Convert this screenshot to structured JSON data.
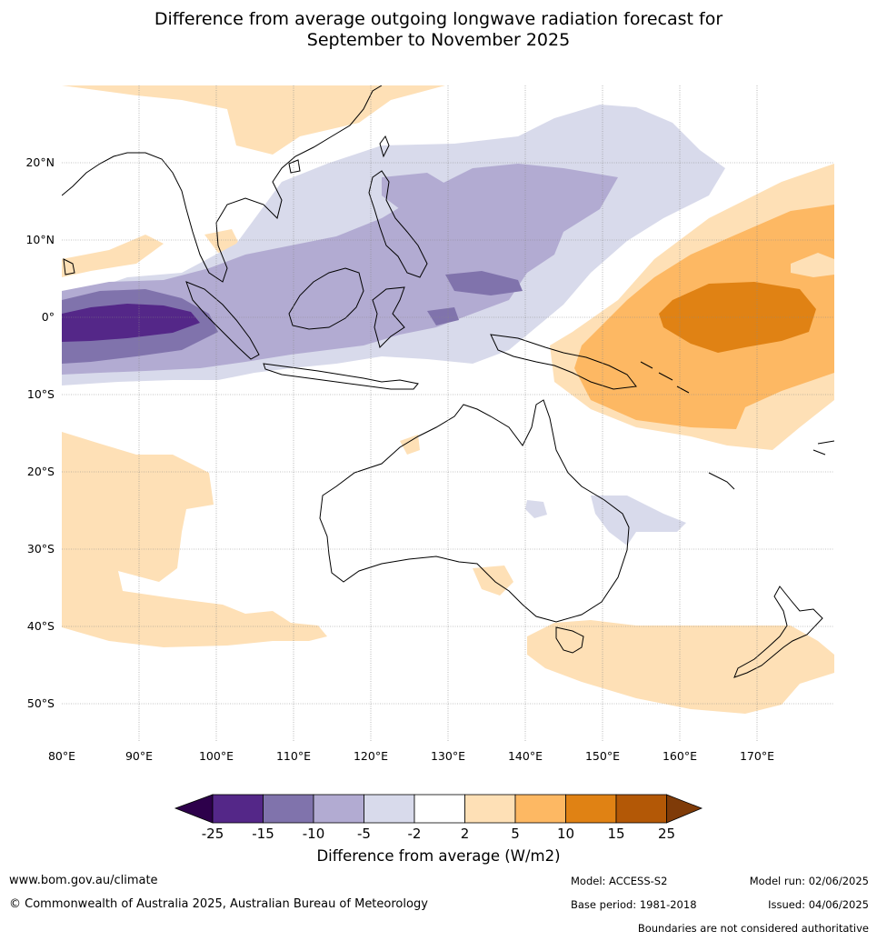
{
  "title_line1": "Difference from average outgoing longwave radiation forecast for",
  "title_line2": "September to November 2025",
  "lon_ticks": [
    "80°E",
    "90°E",
    "100°E",
    "110°E",
    "120°E",
    "130°E",
    "140°E",
    "150°E",
    "160°E",
    "170°E"
  ],
  "lat_ticks": [
    "20°N",
    "10°N",
    "0°",
    "10°S",
    "20°S",
    "30°S",
    "40°S",
    "50°S"
  ],
  "colorbar": {
    "title": "Difference from average (W/m2)",
    "ticks": [
      "-25",
      "-15",
      "-10",
      "-5",
      "-2",
      "2",
      "5",
      "10",
      "15",
      "25"
    ],
    "colors": [
      "#2d004b",
      "#542788",
      "#8073ac",
      "#b2abd2",
      "#d8daeb",
      "#ffffff",
      "#fee0b6",
      "#fdb863",
      "#e08214",
      "#b35806",
      "#7f3b08"
    ]
  },
  "footer": {
    "url": "www.bom.gov.au/climate",
    "copyright": "© Commonwealth of Australia 2025, Australian Bureau of Meteorology",
    "model": "Model: ACCESS-S2",
    "base_period": "Base period: 1981-2018",
    "model_run": "Model run: 02/06/2025",
    "issued": "Issued: 04/06/2025",
    "disclaimer": "Boundaries are not considered authoritative"
  }
}
